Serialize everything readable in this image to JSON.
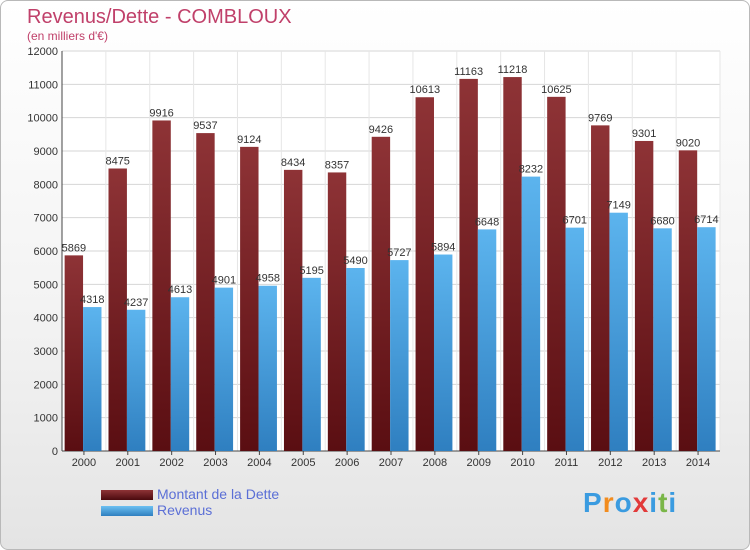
{
  "chart_data": {
    "type": "bar",
    "title": "Revenus/Dette - COMBLOUX",
    "subtitle": "(en milliers d'€)",
    "categories": [
      "2000",
      "2001",
      "2002",
      "2003",
      "2004",
      "2005",
      "2006",
      "2007",
      "2008",
      "2009",
      "2010",
      "2011",
      "2012",
      "2013",
      "2014"
    ],
    "series": [
      {
        "name": "Montant de la Dette",
        "color": "#7a1f24",
        "values": [
          5869,
          8475,
          9916,
          9537,
          9124,
          8434,
          8357,
          9426,
          10613,
          11163,
          11218,
          10625,
          9769,
          9301,
          9020
        ]
      },
      {
        "name": "Revenus",
        "color": "#4aa3e0",
        "values": [
          4318,
          4237,
          4613,
          4901,
          4958,
          5195,
          5490,
          5727,
          5894,
          6648,
          8232,
          6701,
          7149,
          6680,
          6714
        ]
      }
    ],
    "ylim": [
      0,
      12000
    ],
    "yticks": [
      0,
      1000,
      2000,
      3000,
      4000,
      5000,
      6000,
      7000,
      8000,
      9000,
      10000,
      11000,
      12000
    ],
    "grid": true,
    "legend": "bottom-left"
  },
  "logo": {
    "text": "Proxiti",
    "letters": [
      "P",
      "r",
      "o",
      "x",
      "i",
      "t",
      "i"
    ],
    "colors": [
      "#3a9be0",
      "#f28c1e",
      "#3a9be0",
      "#e23a3a",
      "#3a9be0",
      "#7ab648",
      "#3a9be0"
    ]
  }
}
